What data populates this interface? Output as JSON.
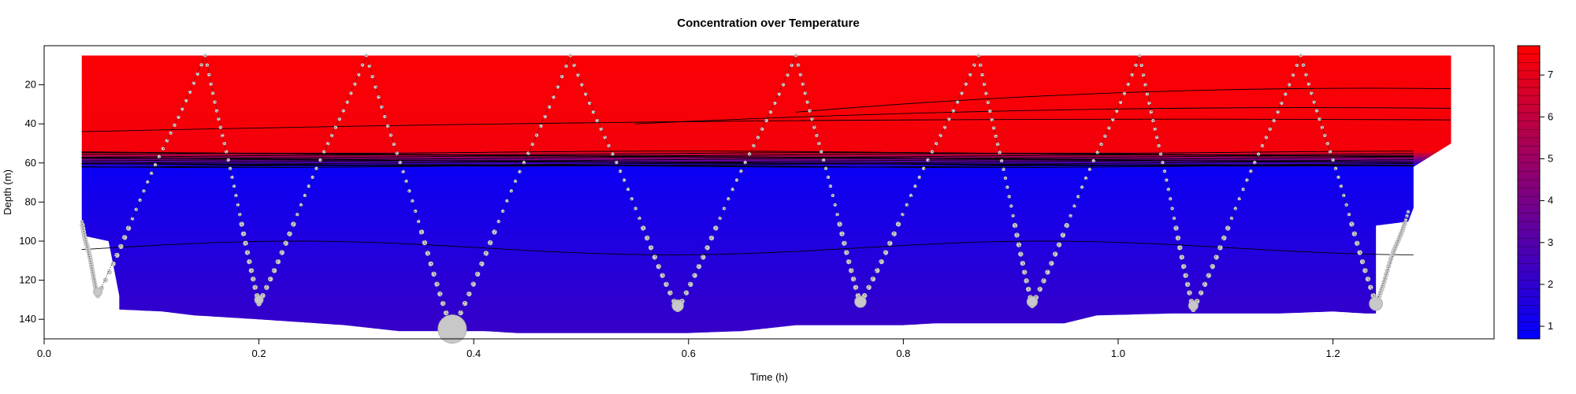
{
  "chart_data": {
    "type": "heatmap",
    "title": "Concentration over Temperature",
    "xlabel": "Time (h)",
    "ylabel": "Depth (m)",
    "xlim": [
      0.0,
      1.35
    ],
    "ylim": [
      150,
      0
    ],
    "x_ticks": [
      "0.0",
      "0.2",
      "0.4",
      "0.6",
      "0.8",
      "1.0",
      "1.2"
    ],
    "x_tick_values": [
      0.0,
      0.2,
      0.4,
      0.6,
      0.8,
      1.0,
      1.2
    ],
    "y_ticks": [
      "20",
      "40",
      "60",
      "80",
      "100",
      "120",
      "140"
    ],
    "y_tick_values": [
      20,
      40,
      60,
      80,
      100,
      120,
      140
    ],
    "colorbar": {
      "range": [
        0.7,
        7.7
      ],
      "ticks": [
        "1",
        "2",
        "3",
        "4",
        "5",
        "6",
        "7"
      ],
      "tick_values": [
        1,
        2,
        3,
        4,
        5,
        6,
        7
      ],
      "color_low": "#0000ff",
      "color_high": "#ff0000"
    },
    "field": {
      "upper_layer_value": 7.4,
      "thermocline_top_depth": 54,
      "thermocline_bottom_depth": 62,
      "deep_value_at_60m": 1.0,
      "deep_value_at_145m": 2.2,
      "x_range": [
        0.035,
        1.31
      ]
    },
    "profile_track": {
      "color": "#c8c8c8",
      "turn_points": [
        {
          "x": 0.035,
          "y": 90
        },
        {
          "x": 0.05,
          "y": 128
        },
        {
          "x": 0.15,
          "y": 5
        },
        {
          "x": 0.2,
          "y": 132
        },
        {
          "x": 0.3,
          "y": 5
        },
        {
          "x": 0.38,
          "y": 146
        },
        {
          "x": 0.49,
          "y": 5
        },
        {
          "x": 0.59,
          "y": 135
        },
        {
          "x": 0.7,
          "y": 5
        },
        {
          "x": 0.76,
          "y": 132
        },
        {
          "x": 0.87,
          "y": 5
        },
        {
          "x": 0.92,
          "y": 133
        },
        {
          "x": 1.02,
          "y": 5
        },
        {
          "x": 1.07,
          "y": 135
        },
        {
          "x": 1.17,
          "y": 5
        },
        {
          "x": 1.24,
          "y": 132
        },
        {
          "x": 1.27,
          "y": 85
        }
      ],
      "large_markers": [
        {
          "x": 0.38,
          "y": 145,
          "size": 3.0
        },
        {
          "x": 0.59,
          "y": 133,
          "size": 1.2
        },
        {
          "x": 0.76,
          "y": 131,
          "size": 1.2
        },
        {
          "x": 0.92,
          "y": 131,
          "size": 1.1
        },
        {
          "x": 1.07,
          "y": 133,
          "size": 1.0
        },
        {
          "x": 1.24,
          "y": 132,
          "size": 1.4
        },
        {
          "x": 0.2,
          "y": 130,
          "size": 0.9
        },
        {
          "x": 0.05,
          "y": 126,
          "size": 0.9
        }
      ]
    },
    "contour_levels": [
      1.2,
      1.4,
      1.6,
      1.8,
      2.0,
      2.5,
      3.0,
      3.5,
      4.0,
      4.5,
      5.0,
      5.5,
      6.0,
      6.5,
      7.0
    ]
  }
}
